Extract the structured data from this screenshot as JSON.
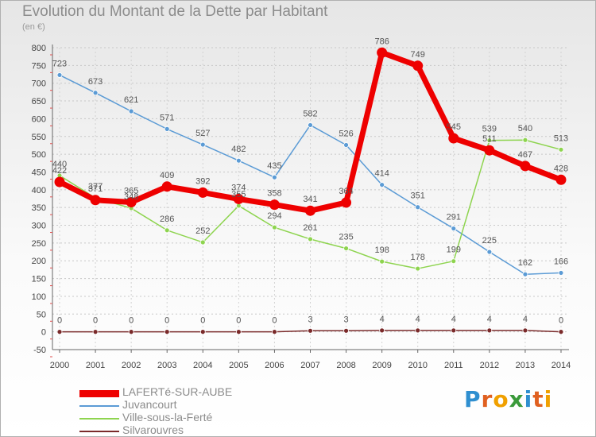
{
  "title": "Evolution du Montant de la Dette par Habitant",
  "unit": "(en €)",
  "logo": {
    "letters": [
      "P",
      "r",
      "o",
      "x",
      "i",
      "t",
      "i"
    ],
    "colors": [
      "#2f8fd0",
      "#e06020",
      "#f0a000",
      "#3a9a3a",
      "#2f8fd0",
      "#e06020",
      "#f0a000"
    ]
  },
  "chart_data": {
    "type": "line",
    "x": [
      "2000",
      "2001",
      "2002",
      "2003",
      "2004",
      "2005",
      "2006",
      "2007",
      "2008",
      "2009",
      "2010",
      "2011",
      "2012",
      "2013",
      "2014"
    ],
    "ylim": [
      -50,
      800
    ],
    "yticks": [
      -50,
      0,
      50,
      100,
      150,
      200,
      250,
      300,
      350,
      400,
      450,
      500,
      550,
      600,
      650,
      700,
      750,
      800
    ],
    "grid": true,
    "legend_position": "bottom-left",
    "series": [
      {
        "name": "Juvancourt",
        "color": "#5b9bd5",
        "values": [
          723,
          673,
          621,
          571,
          527,
          482,
          435,
          582,
          526,
          414,
          351,
          291,
          225,
          162,
          166
        ]
      },
      {
        "name": "Ville-sous-la-Ferté",
        "color": "#8ed44f",
        "values": [
          440,
          377,
          348,
          286,
          252,
          355,
          294,
          261,
          235,
          198,
          178,
          199,
          539,
          540,
          513
        ]
      },
      {
        "name": "Silvarouvres",
        "color": "#7a2a2a",
        "values": [
          0,
          0,
          0,
          0,
          0,
          0,
          0,
          3,
          3,
          4,
          4,
          4,
          4,
          4,
          0
        ]
      },
      {
        "name": "LAFERTé-SUR-AUBE",
        "color": "#ee0000",
        "values": [
          422,
          371,
          365,
          409,
          392,
          374,
          358,
          341,
          364,
          786,
          749,
          545,
          511,
          467,
          428
        ]
      }
    ]
  },
  "legend": [
    {
      "name": "LAFERTé-SUR-AUBE",
      "color": "#ee0000",
      "width": 9
    },
    {
      "name": "Juvancourt",
      "color": "#5b9bd5",
      "width": 2
    },
    {
      "name": "Ville-sous-la-Ferté",
      "color": "#8ed44f",
      "width": 2
    },
    {
      "name": "Silvarouvres",
      "color": "#7a2a2a",
      "width": 2
    }
  ]
}
